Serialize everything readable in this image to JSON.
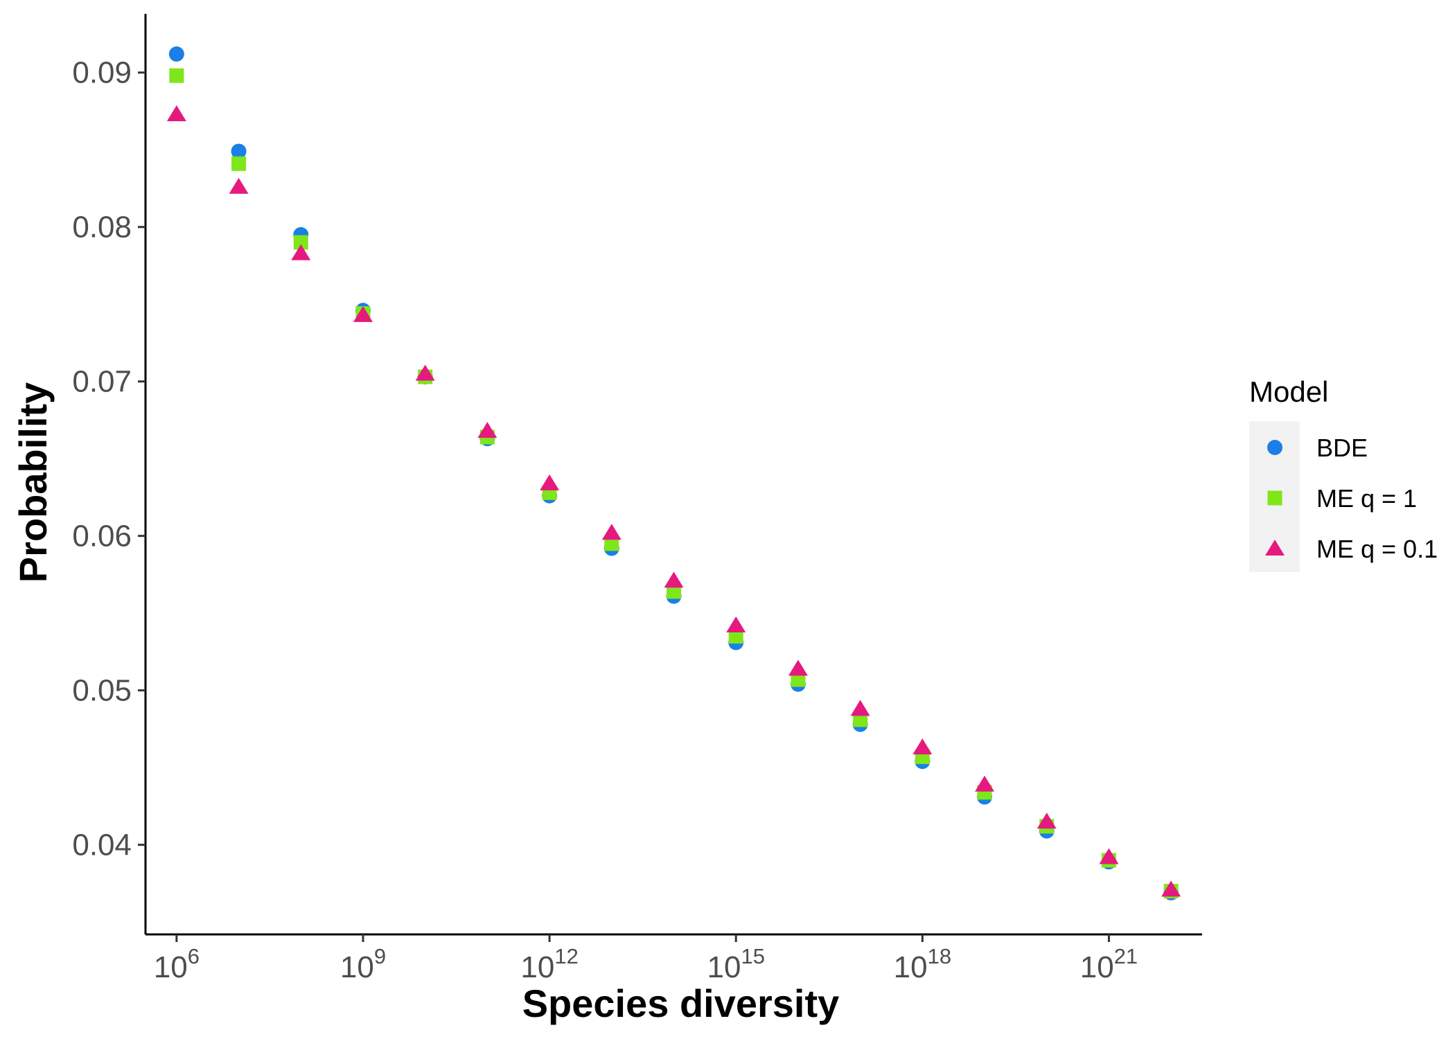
{
  "chart_data": {
    "type": "scatter",
    "title": "",
    "xlabel": "Species diversity",
    "ylabel": "Probability",
    "x_scale": "log10",
    "xlim": [
      316228,
      3.16e+22
    ],
    "ylim": [
      0.0342,
      0.0938
    ],
    "x_ticks": [
      1000000.0,
      1000000000.0,
      1000000000000.0,
      1000000000000000.0,
      1e+18,
      1e+21
    ],
    "x_tick_labels": [
      {
        "base": "10",
        "exp": "6"
      },
      {
        "base": "10",
        "exp": "9"
      },
      {
        "base": "10",
        "exp": "12"
      },
      {
        "base": "10",
        "exp": "15"
      },
      {
        "base": "10",
        "exp": "18"
      },
      {
        "base": "10",
        "exp": "21"
      }
    ],
    "y_ticks": [
      0.04,
      0.05,
      0.06,
      0.07,
      0.08,
      0.09
    ],
    "y_tick_labels": [
      "0.04",
      "0.05",
      "0.06",
      "0.07",
      "0.08",
      "0.09"
    ],
    "grid": false,
    "legend_title": "Model",
    "legend_position": "right",
    "x": [
      1000000.0,
      10000000.0,
      100000000.0,
      1000000000.0,
      10000000000.0,
      100000000000.0,
      1000000000000.0,
      10000000000000.0,
      100000000000000.0,
      1000000000000000.0,
      1e+16,
      1e+17,
      1e+18,
      1e+19,
      1e+20,
      1e+21,
      1e+22
    ],
    "series": [
      {
        "name": "BDE",
        "shape": "circle",
        "color": "#1a7fe6",
        "values": [
          0.0912,
          0.0849,
          0.0795,
          0.0746,
          0.0703,
          0.0663,
          0.0626,
          0.0592,
          0.0561,
          0.0531,
          0.0504,
          0.0478,
          0.0454,
          0.0431,
          0.0409,
          0.0389,
          0.0369
        ]
      },
      {
        "name": "ME q = 1",
        "shape": "square",
        "color": "#7fe619",
        "values": [
          0.0898,
          0.0841,
          0.079,
          0.0744,
          0.0703,
          0.0664,
          0.0628,
          0.0595,
          0.0564,
          0.0535,
          0.0507,
          0.0481,
          0.0457,
          0.0434,
          0.0412,
          0.039,
          0.037
        ]
      },
      {
        "name": "ME q = 0.1",
        "shape": "triangle",
        "color": "#e6197f",
        "values": [
          0.0873,
          0.0826,
          0.0783,
          0.0743,
          0.0705,
          0.0668,
          0.0634,
          0.0602,
          0.0571,
          0.0542,
          0.0514,
          0.0488,
          0.0463,
          0.0439,
          0.0415,
          0.0392,
          0.0371
        ]
      }
    ]
  }
}
